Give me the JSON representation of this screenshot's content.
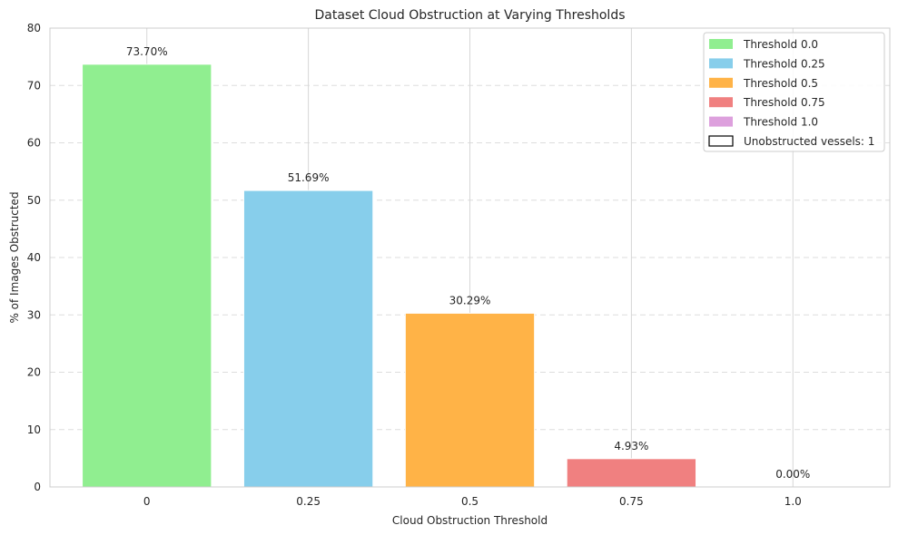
{
  "chart_data": {
    "type": "bar",
    "title": "Dataset Cloud Obstruction at Varying Thresholds",
    "xlabel": "Cloud Obstruction Threshold",
    "ylabel": "% of Images Obstructed",
    "categories": [
      "0",
      "0.25",
      "0.5",
      "0.75",
      "1.0"
    ],
    "values": [
      73.7,
      51.69,
      30.29,
      4.93,
      0.0
    ],
    "data_labels": [
      "73.70%",
      "51.69%",
      "30.29%",
      "4.93%",
      "0.00%"
    ],
    "colors": [
      "#90ee90",
      "#87ceeb",
      "#ffb347",
      "#f08080",
      "#dda0dd"
    ],
    "ylim": [
      0,
      80
    ],
    "yticks": [
      0,
      10,
      20,
      30,
      40,
      50,
      60,
      70,
      80
    ],
    "grid": true,
    "legend": {
      "placement": "top-right",
      "entries": [
        {
          "label": "Threshold 0.0",
          "color": "#90ee90",
          "outlined": false
        },
        {
          "label": "Threshold 0.25",
          "color": "#87ceeb",
          "outlined": false
        },
        {
          "label": "Threshold 0.5",
          "color": "#ffb347",
          "outlined": false
        },
        {
          "label": "Threshold 0.75",
          "color": "#f08080",
          "outlined": false
        },
        {
          "label": "Threshold 1.0",
          "color": "#dda0dd",
          "outlined": false
        },
        {
          "label": "Unobstructed vessels: 1",
          "color": "#ffffff",
          "outlined": true
        }
      ]
    }
  }
}
